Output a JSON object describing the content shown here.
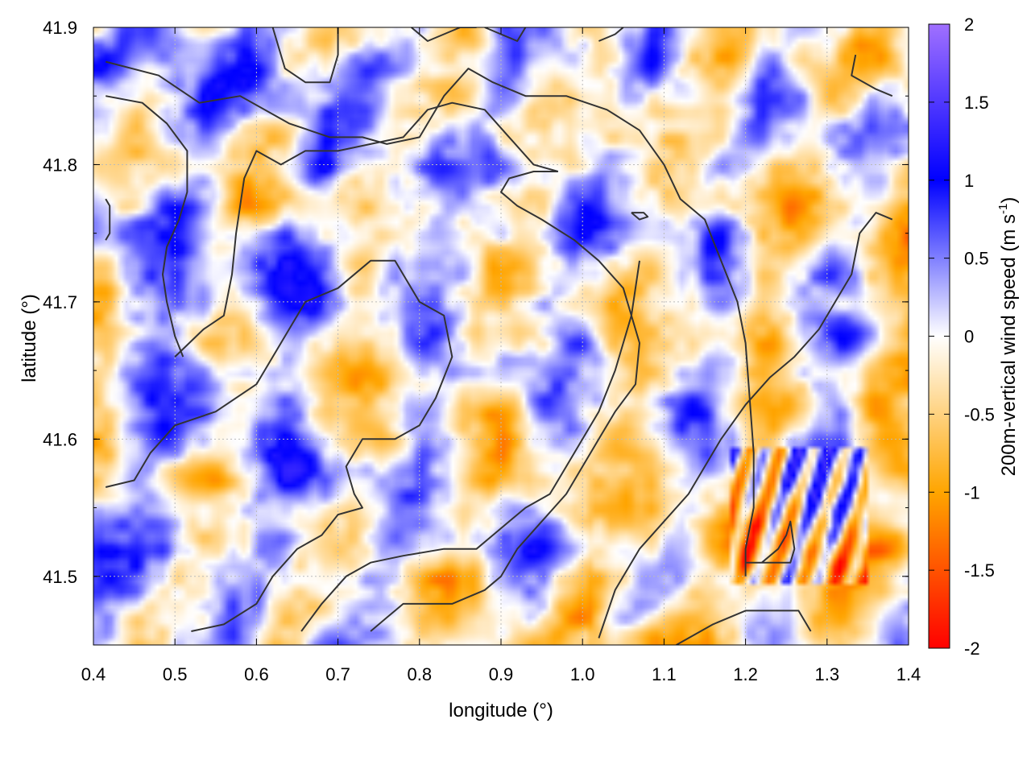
{
  "chart_data": {
    "type": "heatmap",
    "title": "",
    "xlabel": "longitude (°)",
    "ylabel": "latitude (°)",
    "xlim": [
      0.4,
      1.4
    ],
    "ylim": [
      41.45,
      41.9
    ],
    "xticks": [
      "0.4",
      "0.5",
      "0.6",
      "0.7",
      "0.8",
      "0.9",
      "1.0",
      "1.1",
      "1.2",
      "1.3",
      "1.4"
    ],
    "yticks": [
      "41.5",
      "41.6",
      "41.7",
      "41.8",
      "41.9"
    ],
    "grid": true,
    "colorbar": {
      "label_main": "200m-vertical wind speed (m s",
      "label_sup": "-1",
      "label_end": ")",
      "range": [
        -2,
        2
      ],
      "ticks": [
        "2",
        "1.5",
        "1",
        "0.5",
        "0",
        "-0.5",
        "-1",
        "-1.5",
        "-2"
      ],
      "colors": [
        "#ff0000",
        "#ffa500",
        "#ffffff",
        "#0000ff",
        "#a070ff"
      ],
      "color_stops": [
        -2,
        -1,
        0,
        1,
        2
      ]
    },
    "contour_color": "#333333",
    "contours": [
      [
        [
          0.415,
          41.875
        ],
        [
          0.48,
          41.865
        ],
        [
          0.53,
          41.845
        ],
        [
          0.58,
          41.85
        ],
        [
          0.64,
          41.83
        ],
        [
          0.69,
          41.82
        ],
        [
          0.73,
          41.82
        ],
        [
          0.76,
          41.815
        ],
        [
          0.8,
          41.82
        ],
        [
          0.83,
          41.85
        ],
        [
          0.86,
          41.87
        ],
        [
          0.89,
          41.86
        ],
        [
          0.93,
          41.85
        ],
        [
          0.98,
          41.85
        ],
        [
          1.03,
          41.84
        ],
        [
          1.07,
          41.825
        ],
        [
          1.1,
          41.8
        ],
        [
          1.12,
          41.775
        ],
        [
          1.15,
          41.76
        ],
        [
          1.17,
          41.73
        ],
        [
          1.19,
          41.7
        ],
        [
          1.2,
          41.67
        ],
        [
          1.205,
          41.63
        ],
        [
          1.21,
          41.59
        ],
        [
          1.21,
          41.55
        ],
        [
          1.2,
          41.52
        ],
        [
          1.2,
          41.5
        ]
      ],
      [
        [
          0.415,
          41.85
        ],
        [
          0.46,
          41.845
        ],
        [
          0.49,
          41.83
        ],
        [
          0.515,
          41.81
        ],
        [
          0.515,
          41.78
        ],
        [
          0.505,
          41.76
        ],
        [
          0.49,
          41.74
        ],
        [
          0.485,
          41.72
        ],
        [
          0.49,
          41.7
        ],
        [
          0.5,
          41.675
        ],
        [
          0.51,
          41.66
        ]
      ],
      [
        [
          0.5,
          41.66
        ],
        [
          0.535,
          41.68
        ],
        [
          0.56,
          41.69
        ],
        [
          0.57,
          41.72
        ],
        [
          0.575,
          41.75
        ],
        [
          0.585,
          41.79
        ],
        [
          0.6,
          41.81
        ],
        [
          0.63,
          41.8
        ],
        [
          0.66,
          41.81
        ],
        [
          0.7,
          41.81
        ],
        [
          0.74,
          41.815
        ],
        [
          0.78,
          41.82
        ],
        [
          0.81,
          41.84
        ],
        [
          0.84,
          41.845
        ],
        [
          0.88,
          41.84
        ],
        [
          0.91,
          41.82
        ],
        [
          0.94,
          41.8
        ],
        [
          0.97,
          41.795
        ]
      ],
      [
        [
          0.97,
          41.795
        ],
        [
          0.94,
          41.795
        ],
        [
          0.91,
          41.79
        ],
        [
          0.9,
          41.78
        ],
        [
          0.92,
          41.77
        ],
        [
          0.95,
          41.76
        ],
        [
          0.99,
          41.745
        ],
        [
          1.02,
          41.73
        ],
        [
          1.05,
          41.71
        ],
        [
          1.06,
          41.69
        ],
        [
          1.07,
          41.67
        ],
        [
          1.065,
          41.64
        ],
        [
          1.04,
          41.62
        ],
        [
          1.02,
          41.6
        ],
        [
          1.0,
          41.58
        ],
        [
          0.98,
          41.56
        ],
        [
          0.95,
          41.54
        ],
        [
          0.92,
          41.52
        ],
        [
          0.9,
          41.5
        ],
        [
          0.88,
          41.49
        ],
        [
          0.84,
          41.48
        ],
        [
          0.8,
          41.48
        ],
        [
          0.78,
          41.48
        ],
        [
          0.76,
          41.47
        ],
        [
          0.74,
          41.46
        ]
      ],
      [
        [
          0.415,
          41.565
        ],
        [
          0.45,
          41.57
        ],
        [
          0.47,
          41.59
        ],
        [
          0.5,
          41.61
        ],
        [
          0.55,
          41.62
        ],
        [
          0.6,
          41.64
        ],
        [
          0.63,
          41.67
        ],
        [
          0.66,
          41.7
        ],
        [
          0.7,
          41.71
        ],
        [
          0.74,
          41.73
        ],
        [
          0.77,
          41.73
        ],
        [
          0.8,
          41.7
        ],
        [
          0.83,
          41.69
        ],
        [
          0.84,
          41.66
        ],
        [
          0.82,
          41.63
        ],
        [
          0.8,
          41.61
        ],
        [
          0.77,
          41.6
        ],
        [
          0.73,
          41.6
        ],
        [
          0.71,
          41.58
        ],
        [
          0.72,
          41.56
        ],
        [
          0.73,
          41.55
        ],
        [
          0.7,
          41.545
        ],
        [
          0.68,
          41.53
        ],
        [
          0.65,
          41.52
        ],
        [
          0.62,
          41.5
        ],
        [
          0.6,
          41.48
        ],
        [
          0.56,
          41.465
        ],
        [
          0.52,
          41.46
        ]
      ],
      [
        [
          0.655,
          41.46
        ],
        [
          0.68,
          41.48
        ],
        [
          0.71,
          41.5
        ],
        [
          0.74,
          41.51
        ],
        [
          0.78,
          41.515
        ],
        [
          0.83,
          41.52
        ],
        [
          0.87,
          41.52
        ],
        [
          0.9,
          41.535
        ],
        [
          0.93,
          41.55
        ],
        [
          0.96,
          41.56
        ],
        [
          0.98,
          41.58
        ],
        [
          1.0,
          41.6
        ],
        [
          1.02,
          41.62
        ],
        [
          1.04,
          41.65
        ],
        [
          1.06,
          41.69
        ],
        [
          1.07,
          41.73
        ]
      ],
      [
        [
          1.02,
          41.455
        ],
        [
          1.04,
          41.49
        ],
        [
          1.07,
          41.52
        ],
        [
          1.1,
          41.54
        ],
        [
          1.13,
          41.56
        ],
        [
          1.15,
          41.58
        ],
        [
          1.17,
          41.6
        ],
        [
          1.2,
          41.625
        ],
        [
          1.23,
          41.645
        ],
        [
          1.26,
          41.66
        ],
        [
          1.29,
          41.68
        ],
        [
          1.31,
          41.7
        ],
        [
          1.33,
          41.72
        ],
        [
          1.34,
          41.75
        ],
        [
          1.36,
          41.765
        ],
        [
          1.38,
          41.76
        ]
      ],
      [
        [
          1.335,
          41.88
        ],
        [
          1.33,
          41.865
        ],
        [
          1.36,
          41.855
        ],
        [
          1.38,
          41.85
        ]
      ],
      [
        [
          1.115,
          41.45
        ],
        [
          1.16,
          41.465
        ],
        [
          1.2,
          41.475
        ],
        [
          1.24,
          41.475
        ],
        [
          1.265,
          41.475
        ],
        [
          1.28,
          41.46
        ]
      ],
      [
        [
          1.2,
          41.51
        ],
        [
          1.23,
          41.51
        ],
        [
          1.255,
          41.51
        ],
        [
          1.26,
          41.52
        ],
        [
          1.255,
          41.54
        ],
        [
          1.25,
          41.53
        ],
        [
          1.24,
          41.52
        ],
        [
          1.22,
          41.51
        ],
        [
          1.2,
          41.51
        ]
      ],
      [
        [
          1.06,
          41.765
        ],
        [
          1.075,
          41.765
        ],
        [
          1.08,
          41.762
        ],
        [
          1.07,
          41.76
        ],
        [
          1.06,
          41.765
        ]
      ],
      [
        [
          0.62,
          41.9
        ],
        [
          0.635,
          41.87
        ],
        [
          0.66,
          41.86
        ],
        [
          0.69,
          41.86
        ],
        [
          0.7,
          41.88
        ],
        [
          0.7,
          41.9
        ]
      ],
      [
        [
          0.79,
          41.9
        ],
        [
          0.81,
          41.89
        ],
        [
          0.85,
          41.9
        ],
        [
          0.87,
          41.9
        ]
      ],
      [
        [
          0.88,
          41.9
        ],
        [
          0.9,
          41.895
        ],
        [
          0.92,
          41.89
        ],
        [
          0.93,
          41.9
        ]
      ],
      [
        [
          1.02,
          41.89
        ],
        [
          1.04,
          41.895
        ],
        [
          1.05,
          41.9
        ]
      ],
      [
        [
          0.415,
          41.775
        ],
        [
          0.42,
          41.77
        ],
        [
          0.42,
          41.75
        ],
        [
          0.415,
          41.745
        ]
      ]
    ]
  }
}
